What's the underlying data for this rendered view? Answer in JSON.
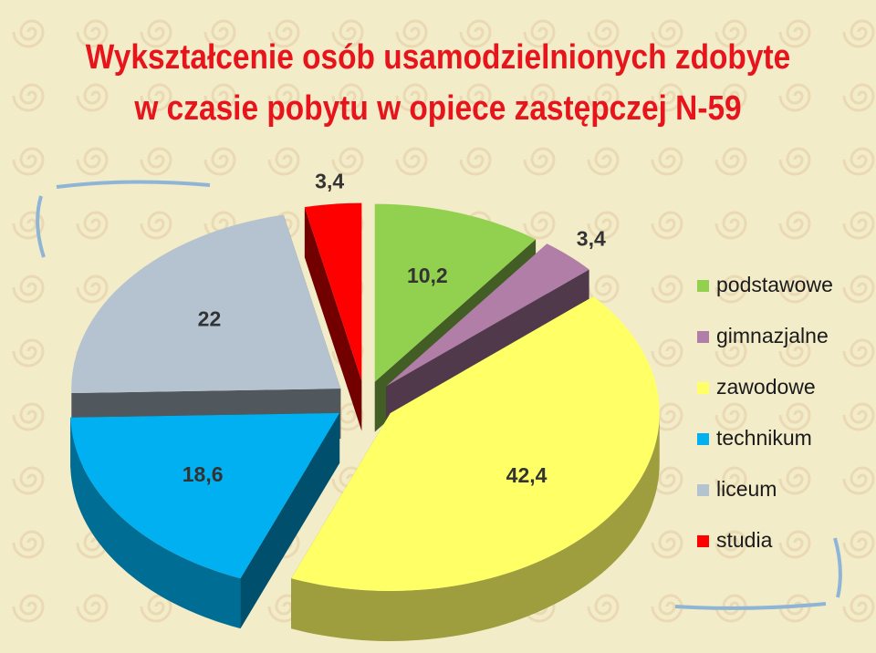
{
  "title": {
    "line1": "Wykształcenie osób usamodzielnionych zdobyte",
    "line2": "w czasie pobytu w opiece zastępczej N-59"
  },
  "chart_data": {
    "type": "pie",
    "title": "Wykształcenie osób usamodzielnionych zdobyte w czasie pobytu w opiece zastępczej N-59",
    "legend_position": "right",
    "style": "3d-exploded",
    "slices": [
      {
        "name": "podstawowe",
        "value": 10.2,
        "label": "10,2",
        "color": "#92d050"
      },
      {
        "name": "gimnazjalne",
        "value": 3.4,
        "label": "3,4",
        "color": "#b07ea6"
      },
      {
        "name": "zawodowe",
        "value": 42.4,
        "label": "42,4",
        "color": "#ffff66"
      },
      {
        "name": "technikum",
        "value": 18.6,
        "label": "18,6",
        "color": "#00b0f0"
      },
      {
        "name": "liceum",
        "value": 22,
        "label": "22",
        "color": "#b4c3cf"
      },
      {
        "name": "studia",
        "value": 3.4,
        "label": "3,4",
        "color": "#ff0000"
      }
    ]
  }
}
